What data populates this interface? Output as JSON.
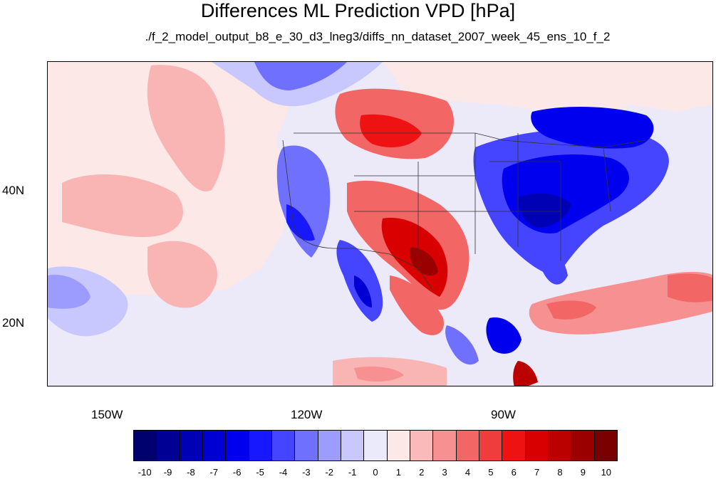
{
  "title": "Differences ML Prediction VPD [hPa]",
  "subtitle": "./f_2_model_output_b8_e_30_d3_lneg3/diffs_nn_dataset_2007_week_45_ens_10_f_2",
  "map": {
    "variable": "VPD difference",
    "units": "hPa",
    "lon_labels": [
      "150W",
      "120W",
      "90W"
    ],
    "lat_labels": [
      "40N",
      "20N"
    ],
    "patterns": {
      "positive": [
        "Great Plains / Texas / northern Mexico",
        "Northern Plains (US-Canada border)",
        "Eastern Pacific subtropics",
        "Caribbean / Atlantic band"
      ],
      "negative": [
        "Eastern United States and Great Lakes",
        "Pacific coast and California",
        "Sierra Madre Occidental",
        "Yucatan / Central America",
        "Gulf of Alaska"
      ]
    }
  },
  "colorbar": {
    "labels": [
      "-10",
      "-9",
      "-8",
      "-7",
      "-6",
      "-5",
      "-4",
      "-3",
      "-2",
      "-1",
      "0",
      "1",
      "2",
      "3",
      "4",
      "5",
      "6",
      "7",
      "8",
      "9",
      "10"
    ],
    "colors": [
      "#00006e",
      "#000095",
      "#0000b4",
      "#0000d2",
      "#0000ee",
      "#1818ff",
      "#4545ff",
      "#7070ff",
      "#9c9cff",
      "#c8c8ff",
      "#eaeafa",
      "#fde8e8",
      "#fbbaba",
      "#f79090",
      "#f26666",
      "#ef3c3c",
      "#ee1212",
      "#d80000",
      "#bb0000",
      "#9a0000",
      "#7a0000"
    ]
  }
}
